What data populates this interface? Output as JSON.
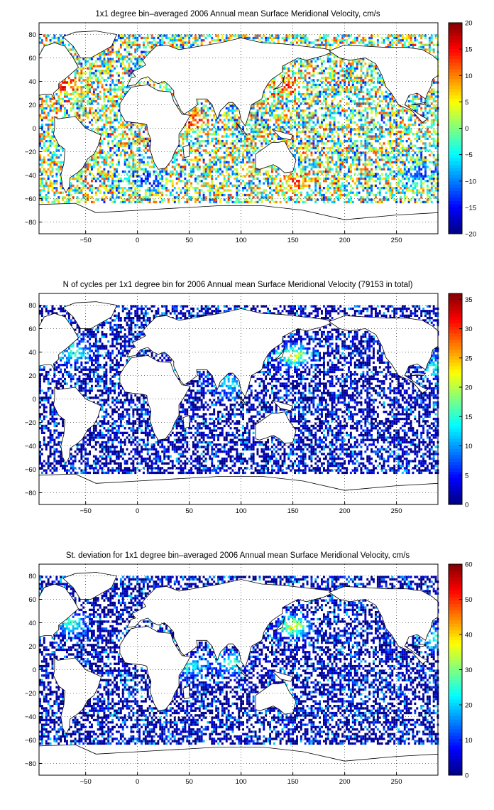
{
  "chart_data": [
    {
      "type": "heatmap",
      "title": "1x1 degree bin–averaged 2006 Annual mean Surface Meridional Velocity, cm/s",
      "xlabel": "",
      "ylabel": "",
      "xlim": [
        -95,
        290
      ],
      "ylim": [
        -90,
        90
      ],
      "xticks": [
        -50,
        0,
        50,
        100,
        150,
        200,
        250
      ],
      "yticks": [
        -80,
        -60,
        -40,
        -20,
        0,
        20,
        40,
        60,
        80
      ],
      "grid": true,
      "colorbar": {
        "min": -20,
        "max": 20,
        "ticks": [
          -20,
          -15,
          -10,
          -5,
          0,
          5,
          10,
          15,
          20
        ],
        "colormap": "jet"
      },
      "pattern": "diverging",
      "pixel_density": 0.55,
      "hotspots": [
        {
          "lon": -70,
          "lat": 36,
          "value": 18
        },
        {
          "lon": 142,
          "lat": 36,
          "value": 18
        },
        {
          "lon": 50,
          "lat": 4,
          "value": 18
        },
        {
          "lon": 10,
          "lat": -45,
          "value": -18
        },
        {
          "lon": 150,
          "lat": -48,
          "value": 16
        },
        {
          "lon": 270,
          "lat": -40,
          "value": -16
        }
      ]
    },
    {
      "type": "heatmap",
      "title": "N of cycles per 1x1 degree bin for 2006 Annual mean Surface Meridional Velocity (79153 in total)",
      "xlabel": "",
      "ylabel": "",
      "xlim": [
        -95,
        290
      ],
      "ylim": [
        -90,
        90
      ],
      "xticks": [
        -50,
        0,
        50,
        100,
        150,
        200,
        250
      ],
      "yticks": [
        -80,
        -60,
        -40,
        -20,
        0,
        20,
        40,
        60,
        80
      ],
      "grid": true,
      "colorbar": {
        "min": 0,
        "max": 36,
        "ticks": [
          0,
          5,
          10,
          15,
          20,
          25,
          30,
          35
        ],
        "colormap": "jet"
      },
      "pattern": "count",
      "pixel_density": 0.55,
      "hotspots": [
        {
          "lon": 150,
          "lat": 36,
          "value": 28
        },
        {
          "lon": -60,
          "lat": 38,
          "value": 18
        },
        {
          "lon": 88,
          "lat": 12,
          "value": 16
        },
        {
          "lon": 288,
          "lat": 26,
          "value": 16
        }
      ]
    },
    {
      "type": "heatmap",
      "title": "St. deviation for 1x1 degree bin–averaged 2006 Annual mean Surface Meridional Velocity, cm/s",
      "xlabel": "",
      "ylabel": "",
      "xlim": [
        -95,
        290
      ],
      "ylim": [
        -90,
        90
      ],
      "xticks": [
        -50,
        0,
        50,
        100,
        150,
        200,
        250
      ],
      "yticks": [
        -80,
        -60,
        -40,
        -20,
        0,
        20,
        40,
        60,
        80
      ],
      "grid": true,
      "colorbar": {
        "min": 0,
        "max": 60,
        "ticks": [
          0,
          10,
          20,
          30,
          40,
          50,
          60
        ],
        "colormap": "jet"
      },
      "pattern": "std",
      "pixel_density": 0.55,
      "hotspots": [
        {
          "lon": 150,
          "lat": 36,
          "value": 45
        },
        {
          "lon": -65,
          "lat": 38,
          "value": 30
        },
        {
          "lon": 90,
          "lat": 4,
          "value": 30
        },
        {
          "lon": 50,
          "lat": 2,
          "value": 28
        },
        {
          "lon": 288,
          "lat": 26,
          "value": 30
        }
      ]
    }
  ]
}
